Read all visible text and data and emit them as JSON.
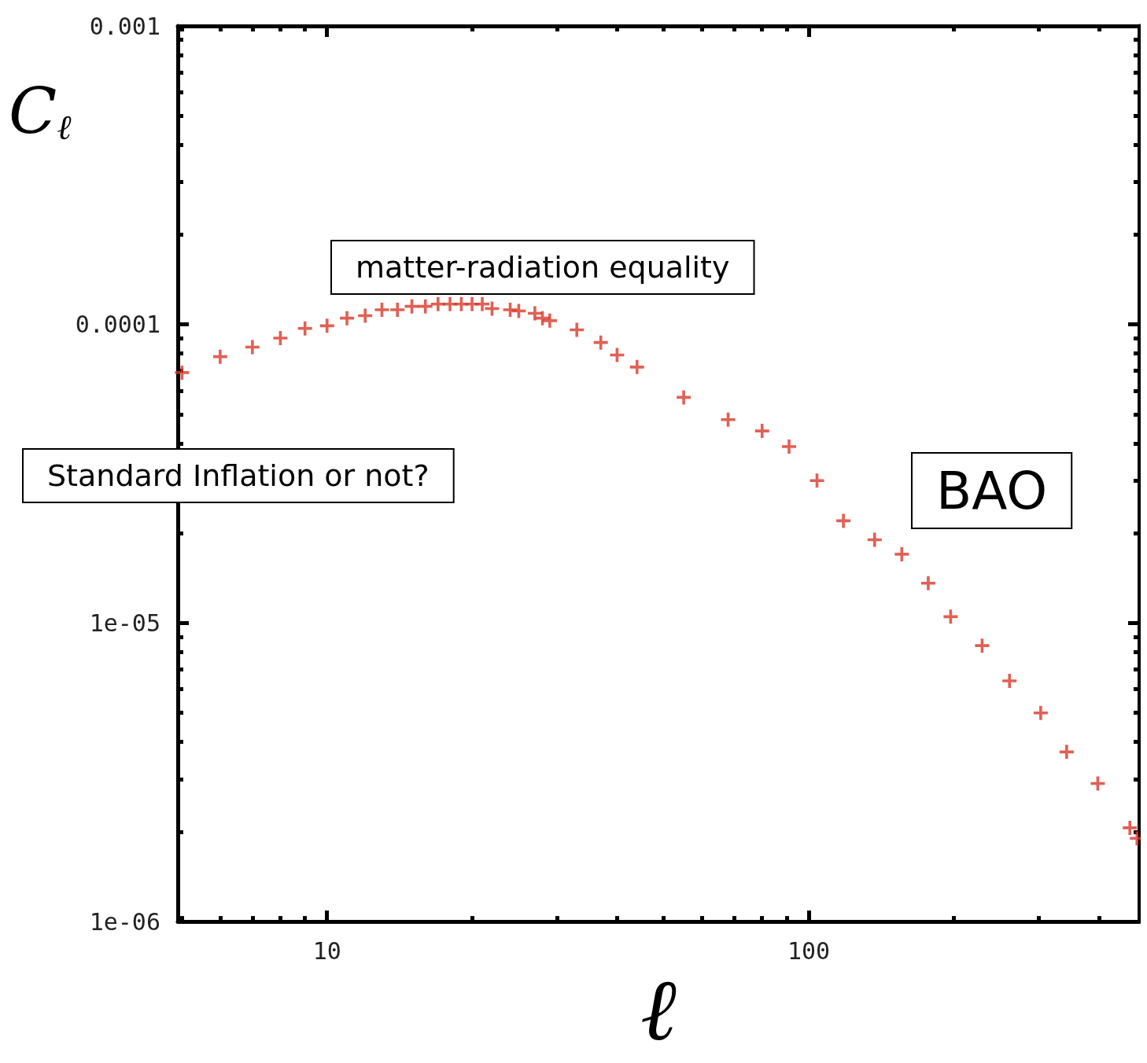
{
  "chart_data": {
    "type": "scatter",
    "xlabel": "ℓ",
    "ylabel": "C$_{ℓ}$",
    "log": "xy",
    "marker": "cross",
    "grid": false,
    "xlim": [
      4.9,
      485
    ],
    "xticks": [
      10,
      100
    ],
    "ylim": [
      1e-06,
      0.001
    ],
    "yticks": [
      {
        "value": 1e-06,
        "label": "1e-06"
      },
      {
        "value": 1e-05,
        "label": "1e-05"
      },
      {
        "value": 0.0001,
        "label": "0.0001"
      },
      {
        "value": 0.001,
        "label": "0.001"
      }
    ],
    "annotations": [
      "matter-radiation equality",
      "Standard Inflation or not?",
      "BAO"
    ],
    "series": [
      {
        "color": "#d8382a",
        "x": [
          5,
          6,
          7,
          8,
          9,
          10,
          11,
          12,
          13,
          14,
          15,
          16,
          17,
          18,
          19,
          20,
          21,
          22,
          24,
          25,
          27,
          28,
          29,
          33,
          37,
          40,
          44,
          55,
          68,
          80,
          91,
          104,
          118,
          137,
          156,
          177,
          197,
          229,
          261,
          303,
          343,
          398,
          464,
          480
        ],
        "values": [
          6.9e-05,
          7.8e-05,
          8.4e-05,
          9e-05,
          9.7e-05,
          9.9e-05,
          0.000105,
          0.000107,
          0.000112,
          0.000112,
          0.000115,
          0.000115,
          0.000117,
          0.000117,
          0.000117,
          0.000117,
          0.000117,
          0.000113,
          0.000112,
          0.000111,
          0.000109,
          0.000105,
          0.000103,
          9.6e-05,
          8.7e-05,
          7.9e-05,
          7.2e-05,
          5.7e-05,
          4.8e-05,
          4.4e-05,
          3.9e-05,
          3e-05,
          2.2e-05,
          1.9e-05,
          1.7e-05,
          1.36e-05,
          1.05e-05,
          8.4e-06,
          6.4e-06,
          5e-06,
          3.7e-06,
          2.9e-06,
          2.06e-06,
          1.9e-06
        ]
      }
    ]
  }
}
